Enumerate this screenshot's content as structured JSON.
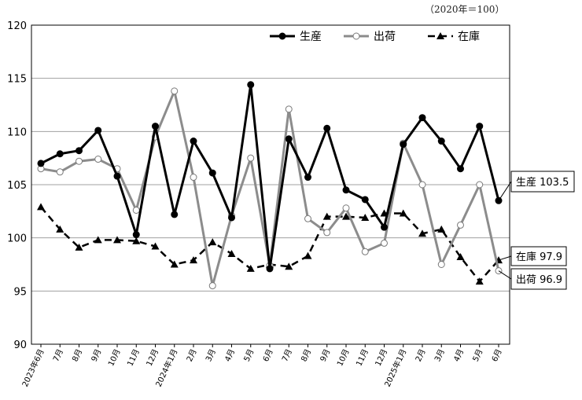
{
  "unit_note": "（2020年＝100）",
  "chart_data": {
    "type": "line",
    "title": "",
    "xlabel": "",
    "ylabel": "",
    "ylim": [
      90,
      120
    ],
    "yticks": [
      90,
      95,
      100,
      105,
      110,
      115,
      120
    ],
    "grid": true,
    "legend_position": "top-right",
    "categories": [
      "2023年6月",
      "7月",
      "8月",
      "9月",
      "10月",
      "11月",
      "12月",
      "2024年1月",
      "2月",
      "3月",
      "4月",
      "5月",
      "6月",
      "7月",
      "8月",
      "9月",
      "10月",
      "11月",
      "12月",
      "2025年1月",
      "2月",
      "3月",
      "4月",
      "5月",
      "6月"
    ],
    "series": [
      {
        "name": "生産",
        "style": "solid-black-filled-circle",
        "color": "#000000",
        "values": [
          107.0,
          107.9,
          108.2,
          110.1,
          105.8,
          100.3,
          110.5,
          102.2,
          109.1,
          106.1,
          101.9,
          114.4,
          97.1,
          109.3,
          105.7,
          110.3,
          104.5,
          103.6,
          101.0,
          108.8,
          111.3,
          109.1,
          106.5,
          110.5,
          103.5
        ],
        "end_label": "生産 103.5"
      },
      {
        "name": "出荷",
        "style": "solid-gray-open-circle",
        "color": "#8c8c8c",
        "values": [
          106.5,
          106.2,
          107.2,
          107.4,
          106.5,
          102.6,
          109.5,
          113.8,
          105.7,
          95.5,
          102.1,
          107.5,
          97.4,
          112.1,
          101.8,
          100.5,
          102.8,
          98.7,
          99.5,
          108.9,
          105.0,
          97.5,
          101.2,
          105.0,
          96.9
        ],
        "end_label": "出荷 96.9"
      },
      {
        "name": "在庫",
        "style": "dashed-black-filled-triangle",
        "color": "#000000",
        "values": [
          102.9,
          100.8,
          99.1,
          99.8,
          99.8,
          99.7,
          99.2,
          97.5,
          97.9,
          99.6,
          98.5,
          97.1,
          97.5,
          97.3,
          98.3,
          102.0,
          102.0,
          101.9,
          102.3,
          102.3,
          100.4,
          100.8,
          98.2,
          95.9,
          97.9
        ],
        "end_label": "在庫 97.9"
      }
    ]
  }
}
